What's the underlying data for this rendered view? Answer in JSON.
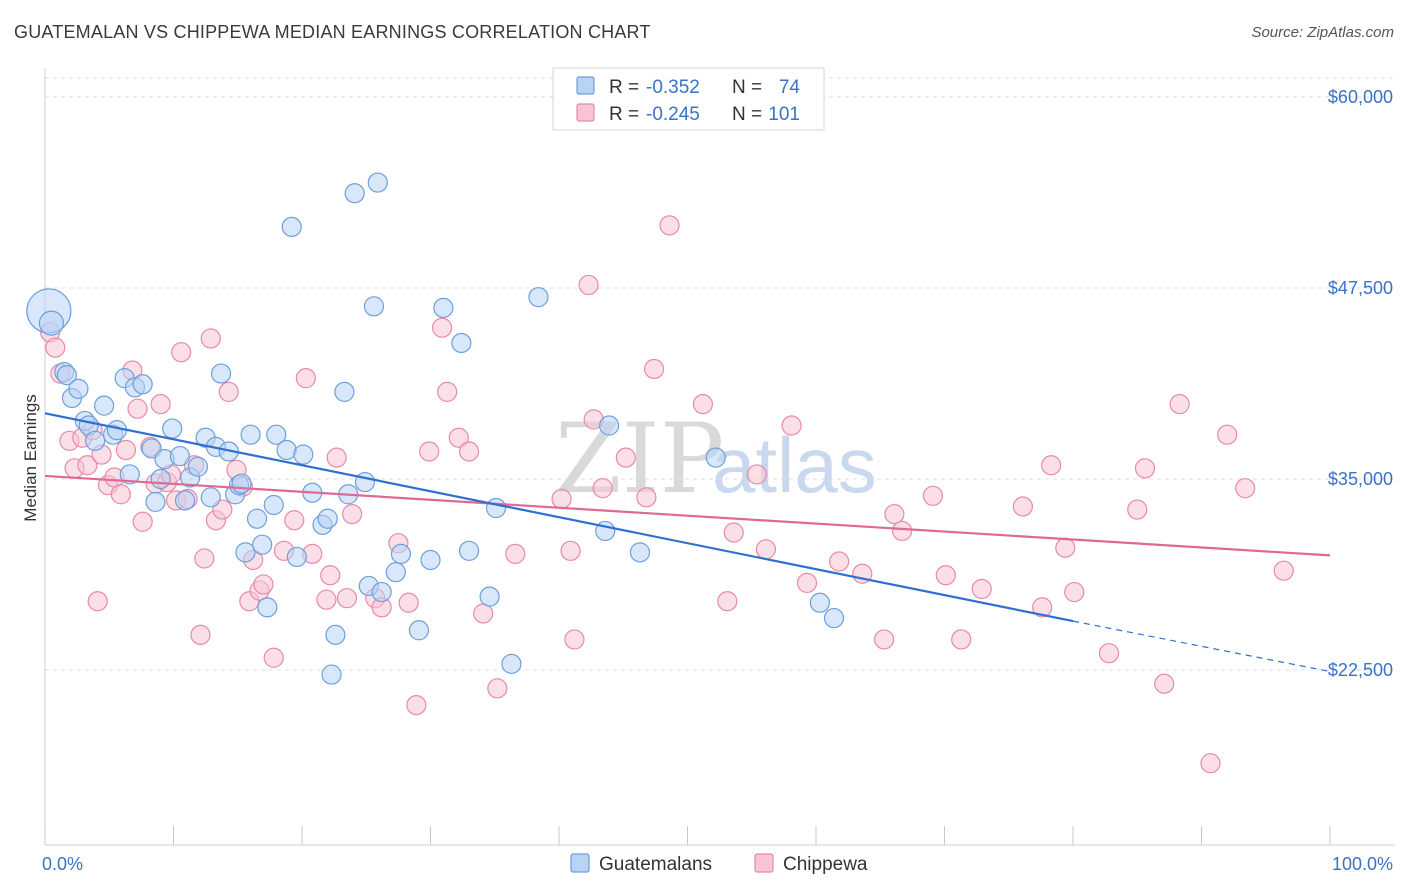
{
  "title": "GUATEMALAN VS CHIPPEWA MEDIAN EARNINGS CORRELATION CHART",
  "source": "Source: ZipAtlas.com",
  "watermark": {
    "zip": "ZIP",
    "atlas": "atlas"
  },
  "colors": {
    "guatemalans_fill": "#b9d3f5",
    "guatemalans_stroke": "#6d9fdd",
    "guatemalans_line": "#2f6fd0",
    "chippewa_fill": "#f8c4d4",
    "chippewa_stroke": "#e88aa8",
    "chippewa_line": "#e06896",
    "accent_text": "#3a72c6",
    "grid": "#dddddd"
  },
  "legend_stats": [
    {
      "r_label": "R =",
      "r_value": "-0.352",
      "n_label": "N =",
      "n_value": "74"
    },
    {
      "r_label": "R =",
      "r_value": "-0.245",
      "n_label": "N =",
      "n_value": "101"
    }
  ],
  "chart_data": {
    "type": "scatter",
    "title": "GUATEMALAN VS CHIPPEWA MEDIAN EARNINGS CORRELATION CHART",
    "xlabel": "",
    "ylabel": "Median Earnings",
    "x_tick_labels": [
      "0.0%",
      "100.0%"
    ],
    "y_ticks": [
      22500,
      35000,
      47500,
      60000
    ],
    "y_tick_labels": [
      "$22,500",
      "$35,000",
      "$47,500",
      "$60,000"
    ],
    "xlim": [
      0,
      100
    ],
    "ylim": [
      10000,
      62000
    ],
    "grid": true,
    "legend_position": "bottom",
    "series": [
      {
        "name": "Guatemalans",
        "r": -0.352,
        "n": 74,
        "trend": {
          "x_start": 0,
          "y_start": 39300,
          "x_end": 80,
          "y_end": 25700,
          "dash_to_x": 100,
          "dash_to_y": 22400
        },
        "points": [
          [
            0.3,
            46000
          ],
          [
            0.5,
            45200
          ],
          [
            1.5,
            42000
          ],
          [
            1.7,
            41800
          ],
          [
            2.1,
            40300
          ],
          [
            2.6,
            40900
          ],
          [
            3.1,
            38800
          ],
          [
            3.4,
            38500
          ],
          [
            3.9,
            37500
          ],
          [
            4.6,
            39800
          ],
          [
            5.3,
            37900
          ],
          [
            5.6,
            38200
          ],
          [
            6.2,
            41600
          ],
          [
            6.6,
            35300
          ],
          [
            7.0,
            41000
          ],
          [
            7.6,
            41200
          ],
          [
            8.3,
            37000
          ],
          [
            8.6,
            33500
          ],
          [
            9.0,
            35000
          ],
          [
            9.3,
            36300
          ],
          [
            9.9,
            38300
          ],
          [
            10.5,
            36500
          ],
          [
            10.9,
            33600
          ],
          [
            11.3,
            35100
          ],
          [
            11.9,
            35800
          ],
          [
            12.5,
            37700
          ],
          [
            12.9,
            33800
          ],
          [
            13.3,
            37100
          ],
          [
            13.7,
            41900
          ],
          [
            14.3,
            36800
          ],
          [
            14.8,
            34000
          ],
          [
            15.1,
            34600
          ],
          [
            15.3,
            34700
          ],
          [
            15.6,
            30200
          ],
          [
            16.0,
            37900
          ],
          [
            16.5,
            32400
          ],
          [
            16.9,
            30700
          ],
          [
            17.3,
            26600
          ],
          [
            17.8,
            33300
          ],
          [
            18.0,
            37900
          ],
          [
            18.8,
            36900
          ],
          [
            19.2,
            51500
          ],
          [
            19.6,
            29900
          ],
          [
            20.1,
            36600
          ],
          [
            20.8,
            34100
          ],
          [
            21.6,
            32000
          ],
          [
            22.0,
            32400
          ],
          [
            22.3,
            22200
          ],
          [
            22.6,
            24800
          ],
          [
            23.3,
            40700
          ],
          [
            23.6,
            34000
          ],
          [
            24.1,
            53700
          ],
          [
            24.9,
            34800
          ],
          [
            25.2,
            28000
          ],
          [
            25.6,
            46300
          ],
          [
            25.9,
            54400
          ],
          [
            26.2,
            27600
          ],
          [
            27.3,
            28900
          ],
          [
            27.7,
            30100
          ],
          [
            29.1,
            25100
          ],
          [
            30.0,
            29700
          ],
          [
            31.0,
            46200
          ],
          [
            32.4,
            43900
          ],
          [
            33.0,
            30300
          ],
          [
            34.6,
            27300
          ],
          [
            35.1,
            33100
          ],
          [
            36.3,
            22900
          ],
          [
            38.4,
            46900
          ],
          [
            43.6,
            31600
          ],
          [
            43.9,
            38500
          ],
          [
            46.3,
            30200
          ],
          [
            52.2,
            36400
          ],
          [
            60.3,
            26900
          ],
          [
            61.4,
            25900
          ]
        ]
      },
      {
        "name": "Chippewa",
        "r": -0.245,
        "n": 101,
        "trend": {
          "x_start": 0,
          "y_start": 35200,
          "x_end": 100,
          "y_end": 30000
        },
        "points": [
          [
            0.4,
            44600
          ],
          [
            0.8,
            43600
          ],
          [
            1.2,
            41900
          ],
          [
            1.9,
            37500
          ],
          [
            2.3,
            35700
          ],
          [
            2.9,
            37700
          ],
          [
            3.3,
            35900
          ],
          [
            3.7,
            38200
          ],
          [
            4.1,
            27000
          ],
          [
            4.4,
            36600
          ],
          [
            4.9,
            34600
          ],
          [
            5.4,
            35100
          ],
          [
            5.9,
            34000
          ],
          [
            6.3,
            36900
          ],
          [
            6.8,
            42100
          ],
          [
            7.2,
            39600
          ],
          [
            7.6,
            32200
          ],
          [
            8.2,
            37100
          ],
          [
            8.6,
            34700
          ],
          [
            9.0,
            39900
          ],
          [
            9.5,
            34800
          ],
          [
            9.8,
            35300
          ],
          [
            10.2,
            33600
          ],
          [
            10.6,
            43300
          ],
          [
            11.1,
            33700
          ],
          [
            11.6,
            35900
          ],
          [
            12.1,
            24800
          ],
          [
            12.4,
            29800
          ],
          [
            12.9,
            44200
          ],
          [
            13.3,
            32300
          ],
          [
            13.8,
            33000
          ],
          [
            14.3,
            40700
          ],
          [
            14.9,
            35600
          ],
          [
            15.4,
            34500
          ],
          [
            15.9,
            27000
          ],
          [
            16.2,
            29700
          ],
          [
            16.7,
            27700
          ],
          [
            17.0,
            28100
          ],
          [
            17.8,
            23300
          ],
          [
            18.6,
            30300
          ],
          [
            19.4,
            32300
          ],
          [
            20.3,
            41600
          ],
          [
            20.8,
            30100
          ],
          [
            21.9,
            27100
          ],
          [
            22.2,
            28700
          ],
          [
            22.7,
            36400
          ],
          [
            23.5,
            27200
          ],
          [
            23.9,
            32700
          ],
          [
            25.7,
            27200
          ],
          [
            26.2,
            26600
          ],
          [
            27.5,
            30800
          ],
          [
            28.3,
            26900
          ],
          [
            28.9,
            20200
          ],
          [
            29.9,
            36800
          ],
          [
            30.9,
            44900
          ],
          [
            31.3,
            40700
          ],
          [
            32.2,
            37700
          ],
          [
            33.0,
            36800
          ],
          [
            34.1,
            26200
          ],
          [
            35.2,
            21300
          ],
          [
            36.6,
            30100
          ],
          [
            40.2,
            33700
          ],
          [
            40.9,
            30300
          ],
          [
            41.2,
            24500
          ],
          [
            42.3,
            47700
          ],
          [
            42.7,
            38900
          ],
          [
            43.4,
            34400
          ],
          [
            45.2,
            36400
          ],
          [
            46.8,
            33800
          ],
          [
            47.4,
            42200
          ],
          [
            48.6,
            51600
          ],
          [
            51.2,
            39900
          ],
          [
            53.1,
            27000
          ],
          [
            53.6,
            31500
          ],
          [
            55.4,
            35300
          ],
          [
            56.1,
            30400
          ],
          [
            58.1,
            38500
          ],
          [
            59.3,
            28200
          ],
          [
            61.8,
            29600
          ],
          [
            63.6,
            28800
          ],
          [
            65.3,
            24500
          ],
          [
            66.1,
            32700
          ],
          [
            66.7,
            31600
          ],
          [
            69.1,
            33900
          ],
          [
            70.1,
            28700
          ],
          [
            71.3,
            24500
          ],
          [
            72.9,
            27800
          ],
          [
            76.1,
            33200
          ],
          [
            77.6,
            26600
          ],
          [
            78.3,
            35900
          ],
          [
            79.4,
            30500
          ],
          [
            80.1,
            27600
          ],
          [
            82.8,
            23600
          ],
          [
            85.0,
            33000
          ],
          [
            85.6,
            35700
          ],
          [
            87.1,
            21600
          ],
          [
            88.3,
            39900
          ],
          [
            90.7,
            16400
          ],
          [
            92.0,
            37900
          ],
          [
            93.4,
            34400
          ],
          [
            96.4,
            29000
          ]
        ]
      }
    ]
  }
}
